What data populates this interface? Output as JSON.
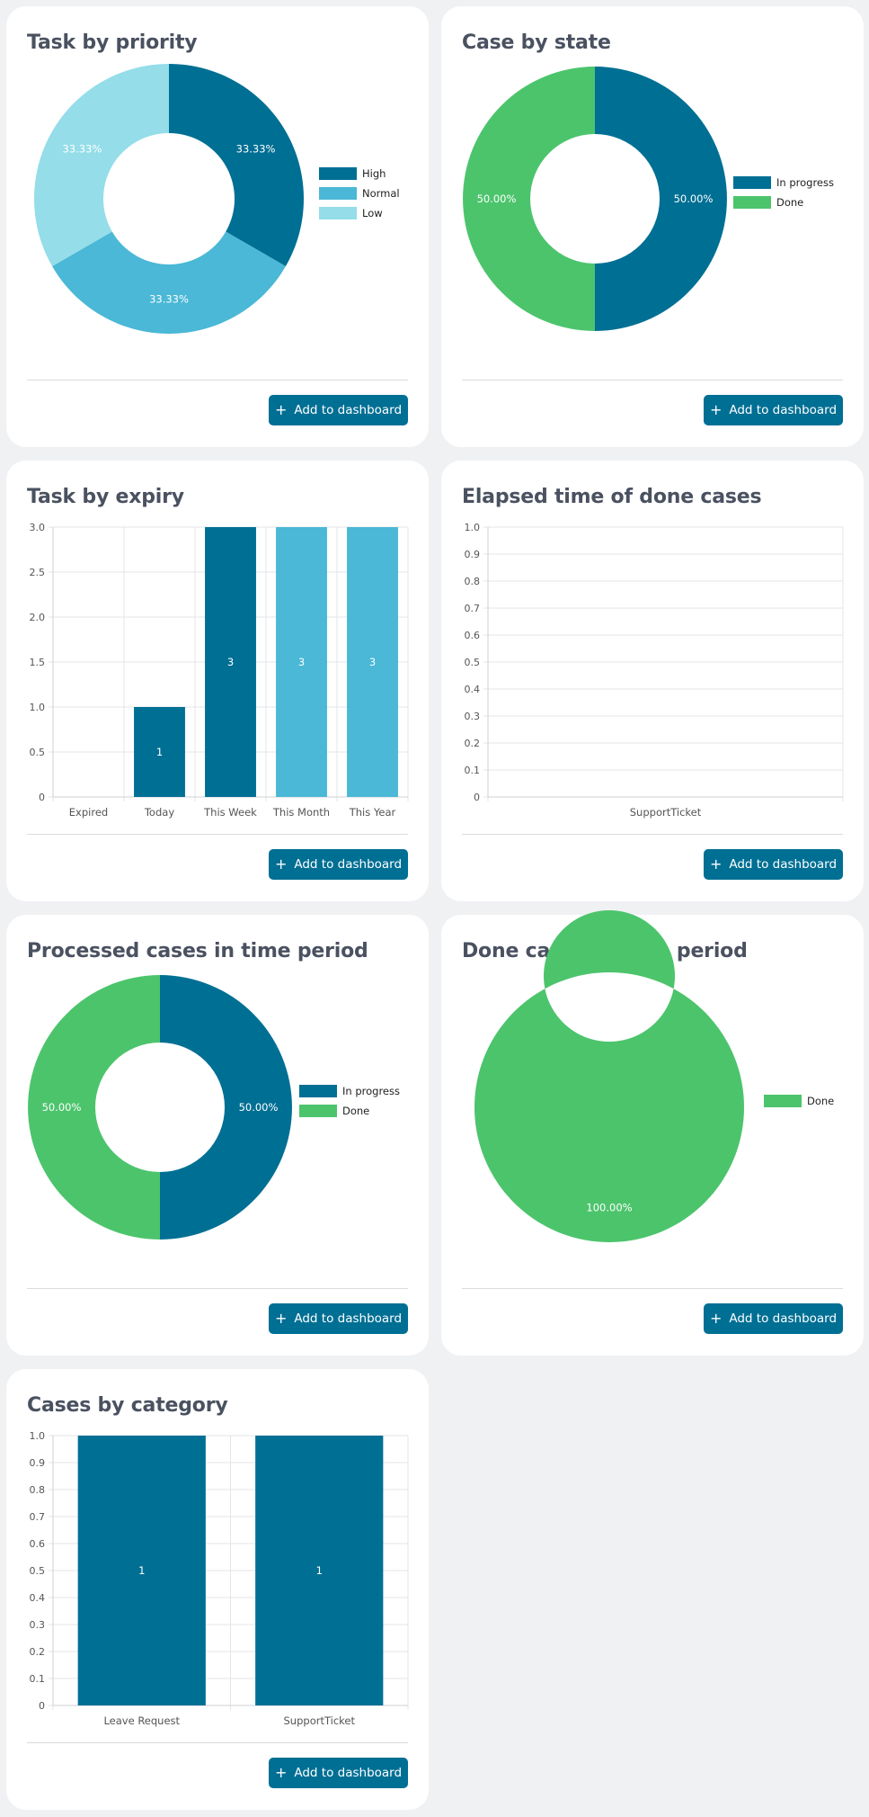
{
  "button_label": "Add to dashboard",
  "colors": {
    "dark_blue": "#006f94",
    "mid_blue": "#4ab8d6",
    "light_blue": "#94dde9",
    "green": "#4cc46c"
  },
  "chart_data": [
    {
      "id": "task-by-priority",
      "type": "pie",
      "title": "Task by priority",
      "labels": [
        "High",
        "Normal",
        "Low"
      ],
      "values": [
        33.33,
        33.33,
        33.33
      ],
      "value_labels": [
        "33.33%",
        "33.33%",
        "33.33%"
      ],
      "legend": "right"
    },
    {
      "id": "case-by-state",
      "type": "pie",
      "title": "Case by state",
      "labels": [
        "In progress",
        "Done"
      ],
      "values": [
        50,
        50
      ],
      "value_labels": [
        "50.00%",
        "50.00%"
      ],
      "legend": "right"
    },
    {
      "id": "task-by-expiry",
      "type": "bar",
      "title": "Task by expiry",
      "categories": [
        "Expired",
        "Today",
        "This Week",
        "This Month",
        "This Year"
      ],
      "values": [
        0,
        1,
        3,
        3,
        3
      ],
      "value_labels": [
        "",
        "1",
        "3",
        "3",
        "3"
      ],
      "y_ticks": [
        "0",
        "0.5",
        "1.0",
        "1.5",
        "2.0",
        "2.5",
        "3.0"
      ],
      "ylim": [
        0,
        3
      ],
      "grid": true
    },
    {
      "id": "elapsed-time",
      "type": "bar",
      "title": "Elapsed time of done cases",
      "categories": [
        "SupportTicket"
      ],
      "values": [
        0
      ],
      "value_labels": [
        ""
      ],
      "y_ticks": [
        "0",
        "0.1",
        "0.2",
        "0.3",
        "0.4",
        "0.5",
        "0.6",
        "0.7",
        "0.8",
        "0.9",
        "1.0"
      ],
      "ylim": [
        0,
        1
      ],
      "grid": true
    },
    {
      "id": "processed-cases",
      "type": "pie",
      "title": "Processed cases in time period",
      "labels": [
        "In progress",
        "Done"
      ],
      "values": [
        50,
        50
      ],
      "value_labels": [
        "50.00%",
        "50.00%"
      ],
      "legend": "right"
    },
    {
      "id": "done-cases",
      "type": "pie",
      "title": "Done cases in time period",
      "labels": [
        "Done"
      ],
      "values": [
        100
      ],
      "value_labels": [
        "100.00%"
      ],
      "legend": "right"
    },
    {
      "id": "cases-by-category",
      "type": "bar",
      "title": "Cases by category",
      "categories": [
        "Leave Request",
        "SupportTicket"
      ],
      "values": [
        1,
        1
      ],
      "value_labels": [
        "1",
        "1"
      ],
      "y_ticks": [
        "0",
        "0.1",
        "0.2",
        "0.3",
        "0.4",
        "0.5",
        "0.6",
        "0.7",
        "0.8",
        "0.9",
        "1.0"
      ],
      "ylim": [
        0,
        1
      ],
      "grid": true
    }
  ]
}
